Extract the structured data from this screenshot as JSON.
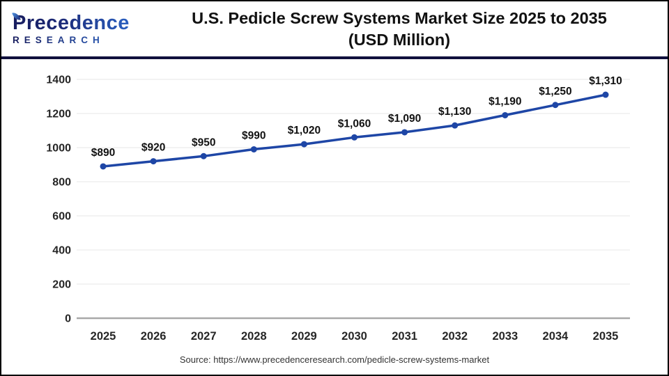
{
  "header": {
    "logo": {
      "line1": "Precedence",
      "line2": "RESEARCH"
    },
    "title_line1": "U.S. Pedicle Screw Systems Market Size 2025 to 2035",
    "title_line2": "(USD Million)"
  },
  "chart_data": {
    "type": "line",
    "title": "U.S. Pedicle Screw Systems Market Size 2025 to 2035 (USD Million)",
    "categories": [
      "2025",
      "2026",
      "2027",
      "2028",
      "2029",
      "2030",
      "2031",
      "2032",
      "2033",
      "2034",
      "2035"
    ],
    "values": [
      890,
      920,
      950,
      990,
      1020,
      1060,
      1090,
      1130,
      1190,
      1250,
      1310
    ],
    "data_labels": [
      "$890",
      "$920",
      "$950",
      "$990",
      "$1,020",
      "$1,060",
      "$1,090",
      "$1,130",
      "$1,190",
      "$1,250",
      "$1,310"
    ],
    "xlabel": "",
    "ylabel": "",
    "ylim": [
      0,
      1400
    ],
    "ytick_step": 200,
    "grid": true,
    "legend": "none",
    "line_color": "#1e46a6",
    "marker_color": "#1e46a6"
  },
  "footer": {
    "source_text": "Source: https://www.precedenceresearch.com/pedicle-screw-systems-market"
  },
  "colors": {
    "header_separator": "#10103d",
    "series_blue": "#1e46a6",
    "grid_gray": "#efefef",
    "axis_gray": "#a8a8a8",
    "text_black": "#111111",
    "logo_navy": "#181d5e",
    "logo_blue": "#2f72d9"
  }
}
